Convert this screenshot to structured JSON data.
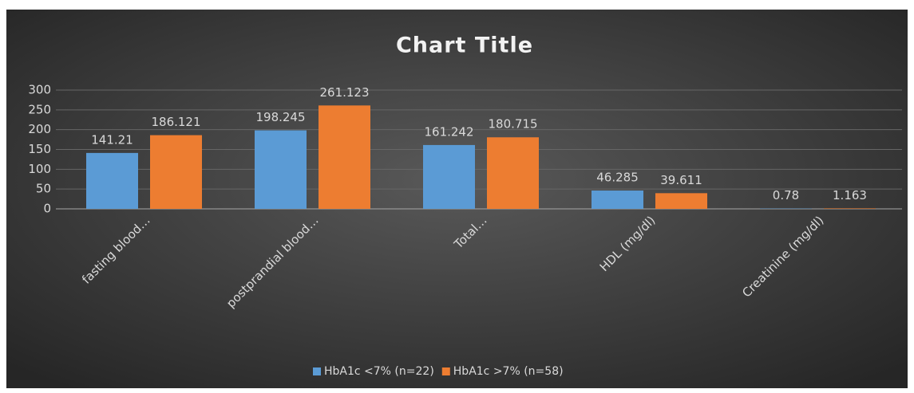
{
  "chart_data": {
    "type": "bar",
    "title": "Chart Title",
    "categories": [
      "fasting blood…",
      "postprandial blood…",
      "Total…",
      "HDL (mg/dl)",
      "Creatinine (mg/dl)"
    ],
    "series": [
      {
        "name": "HbA1c <7% (n=22)",
        "color": "#5b9bd5",
        "values": [
          141.21,
          198.245,
          161.242,
          46.285,
          0.78
        ]
      },
      {
        "name": "HbA1c >7% (n=58)",
        "color": "#ed7d31",
        "values": [
          186.121,
          261.123,
          180.715,
          39.611,
          1.163
        ]
      }
    ],
    "ylim": [
      0,
      300
    ],
    "yticks": [
      0,
      50,
      100,
      150,
      200,
      250,
      300
    ],
    "grid": true,
    "legend": "bottom"
  }
}
